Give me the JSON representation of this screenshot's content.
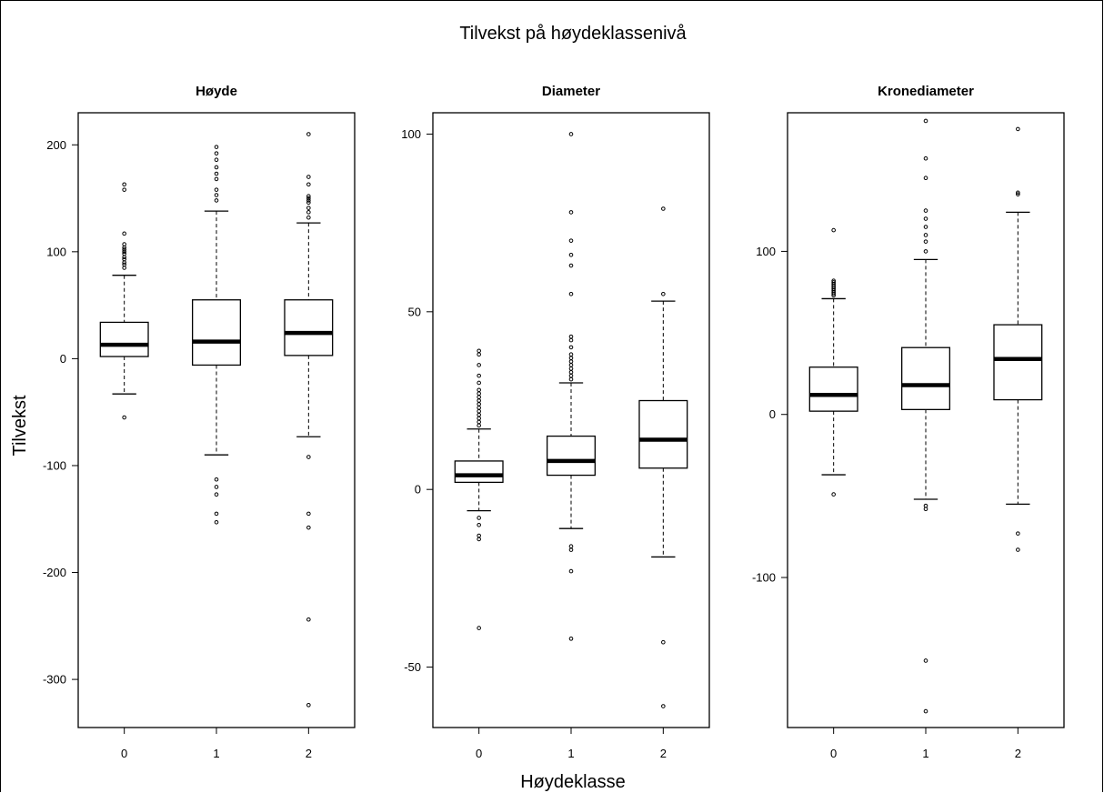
{
  "title": "Tilvekst på høydeklassenivå",
  "xlabel": "Høydeklasse",
  "ylabel": "Tilvekst",
  "chart_data": [
    {
      "type": "boxplot",
      "title": "Høyde",
      "categories": [
        "0",
        "1",
        "2"
      ],
      "yticks": [
        -300,
        -200,
        -100,
        0,
        100,
        200
      ],
      "ylim": [
        -345,
        230
      ],
      "boxes": [
        {
          "category": "0",
          "whisker_low": -33,
          "q1": 2,
          "median": 13,
          "q3": 34,
          "whisker_high": 78,
          "outliers": [
            -55,
            85,
            88,
            90,
            93,
            95,
            98,
            100,
            102,
            104,
            107,
            117,
            158,
            163
          ]
        },
        {
          "category": "1",
          "whisker_low": -90,
          "q1": -6,
          "median": 16,
          "q3": 55,
          "whisker_high": 138,
          "outliers": [
            -113,
            -120,
            -127,
            -145,
            -153,
            148,
            153,
            158,
            168,
            173,
            179,
            186,
            192,
            198
          ]
        },
        {
          "category": "2",
          "whisker_low": -73,
          "q1": 3,
          "median": 24,
          "q3": 55,
          "whisker_high": 127,
          "outliers": [
            -92,
            -145,
            -158,
            -244,
            -324,
            132,
            137,
            141,
            146,
            148,
            150,
            152,
            163,
            170,
            210
          ]
        }
      ]
    },
    {
      "type": "boxplot",
      "title": "Diameter",
      "categories": [
        "0",
        "1",
        "2"
      ],
      "yticks": [
        -50,
        0,
        50,
        100
      ],
      "ylim": [
        -67,
        106
      ],
      "boxes": [
        {
          "category": "0",
          "whisker_low": -6,
          "q1": 2,
          "median": 4,
          "q3": 8,
          "whisker_high": 17,
          "outliers": [
            -8,
            -10,
            -13,
            -14,
            -39,
            18,
            19,
            20,
            21,
            22,
            23,
            24,
            25,
            26,
            27,
            28,
            30,
            32,
            35,
            38,
            39
          ]
        },
        {
          "category": "1",
          "whisker_low": -11,
          "q1": 4,
          "median": 8,
          "q3": 15,
          "whisker_high": 30,
          "outliers": [
            -16,
            -17,
            -23,
            -42,
            31,
            32,
            33,
            34,
            35,
            36,
            37,
            38,
            40,
            42,
            43,
            55,
            63,
            66,
            70,
            78,
            100
          ]
        },
        {
          "category": "2",
          "whisker_low": -19,
          "q1": 6,
          "median": 14,
          "q3": 25,
          "whisker_high": 53,
          "outliers": [
            -43,
            -61,
            55,
            79
          ]
        }
      ]
    },
    {
      "type": "boxplot",
      "title": "Kronediameter",
      "categories": [
        "0",
        "1",
        "2"
      ],
      "yticks": [
        -100,
        0,
        100
      ],
      "ylim": [
        -192,
        185
      ],
      "boxes": [
        {
          "category": "0",
          "whisker_low": -37,
          "q1": 2,
          "median": 12,
          "q3": 29,
          "whisker_high": 71,
          "outliers": [
            -49,
            73,
            74,
            75,
            76,
            77,
            78,
            79,
            80,
            81,
            82,
            113
          ]
        },
        {
          "category": "1",
          "whisker_low": -52,
          "q1": 3,
          "median": 18,
          "q3": 41,
          "whisker_high": 95,
          "outliers": [
            -56,
            -58,
            -151,
            -182,
            100,
            106,
            110,
            115,
            120,
            125,
            145,
            157,
            180
          ]
        },
        {
          "category": "2",
          "whisker_low": -55,
          "q1": 9,
          "median": 34,
          "q3": 55,
          "whisker_high": 124,
          "outliers": [
            -73,
            -83,
            135,
            136,
            175
          ]
        }
      ]
    }
  ]
}
